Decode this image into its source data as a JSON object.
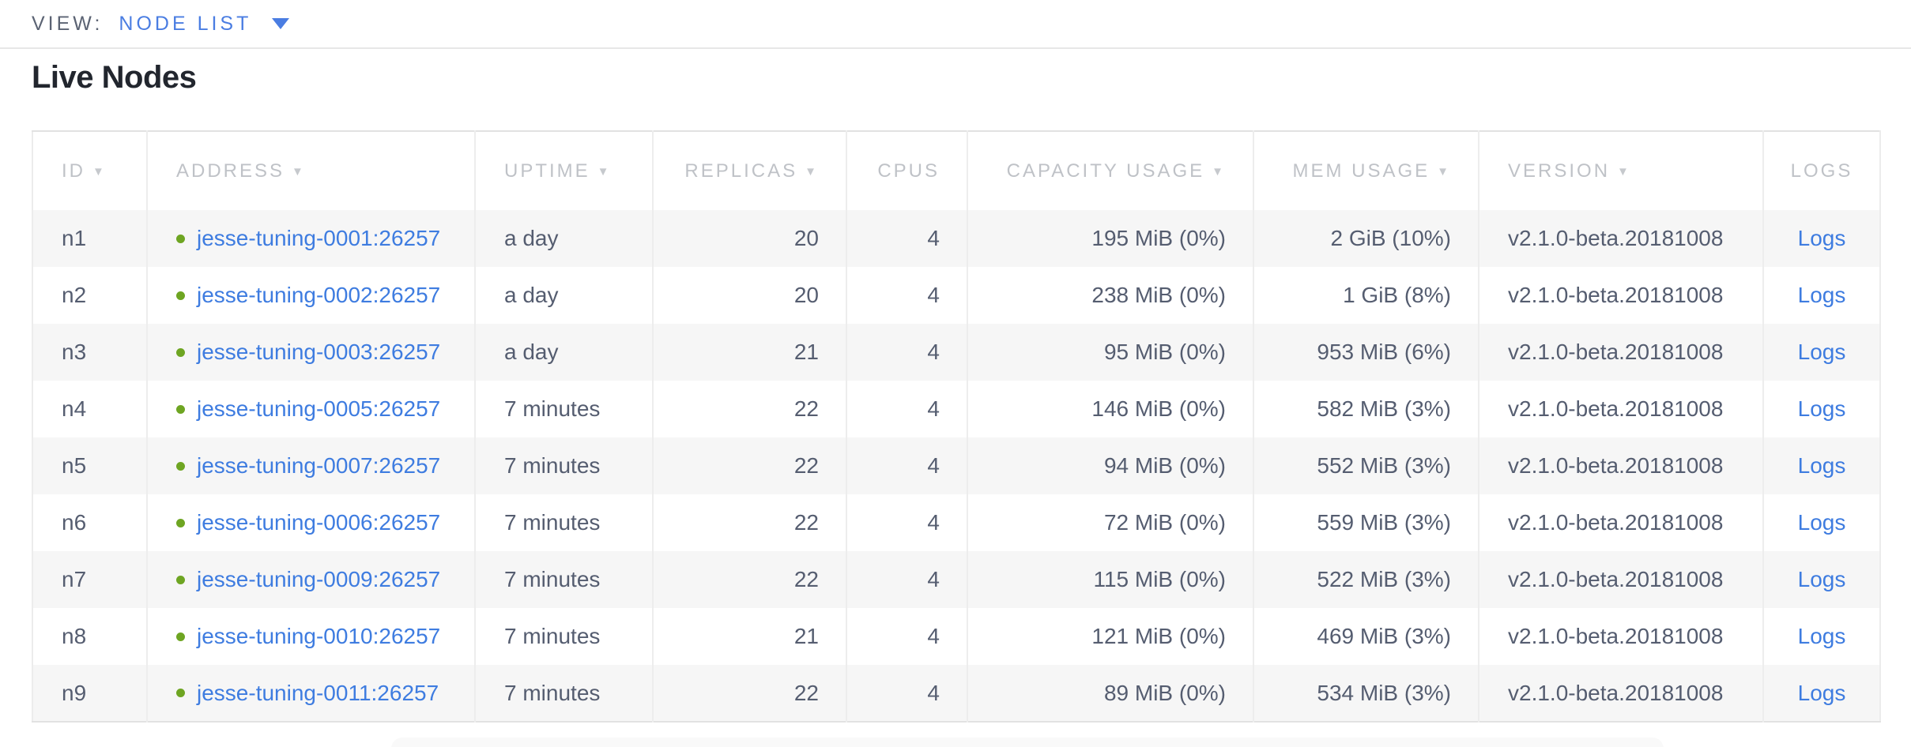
{
  "view_bar": {
    "label": "VIEW:",
    "selected_view": "NODE LIST"
  },
  "page": {
    "title": "Live Nodes"
  },
  "table": {
    "sort_glyph": "▼",
    "columns": [
      {
        "key": "id",
        "label": "ID",
        "sortable": true,
        "align": "left"
      },
      {
        "key": "address",
        "label": "ADDRESS",
        "sortable": true,
        "align": "left"
      },
      {
        "key": "uptime",
        "label": "UPTIME",
        "sortable": true,
        "align": "left"
      },
      {
        "key": "replicas",
        "label": "REPLICAS",
        "sortable": true,
        "align": "right"
      },
      {
        "key": "cpus",
        "label": "CPUS",
        "sortable": false,
        "align": "right"
      },
      {
        "key": "capacity_usage",
        "label": "CAPACITY USAGE",
        "sortable": true,
        "align": "right"
      },
      {
        "key": "mem_usage",
        "label": "MEM USAGE",
        "sortable": true,
        "align": "right"
      },
      {
        "key": "version",
        "label": "VERSION",
        "sortable": true,
        "align": "left"
      },
      {
        "key": "logs",
        "label": "LOGS",
        "sortable": false,
        "align": "center"
      }
    ],
    "rows": [
      {
        "id": "n1",
        "status": "live",
        "address": "jesse-tuning-0001:26257",
        "uptime": "a day",
        "replicas": "20",
        "cpus": "4",
        "capacity_usage": "195 MiB (0%)",
        "mem_usage": "2 GiB (10%)",
        "version": "v2.1.0-beta.20181008",
        "logs": "Logs"
      },
      {
        "id": "n2",
        "status": "live",
        "address": "jesse-tuning-0002:26257",
        "uptime": "a day",
        "replicas": "20",
        "cpus": "4",
        "capacity_usage": "238 MiB (0%)",
        "mem_usage": "1 GiB (8%)",
        "version": "v2.1.0-beta.20181008",
        "logs": "Logs"
      },
      {
        "id": "n3",
        "status": "live",
        "address": "jesse-tuning-0003:26257",
        "uptime": "a day",
        "replicas": "21",
        "cpus": "4",
        "capacity_usage": "95 MiB (0%)",
        "mem_usage": "953 MiB (6%)",
        "version": "v2.1.0-beta.20181008",
        "logs": "Logs"
      },
      {
        "id": "n4",
        "status": "live",
        "address": "jesse-tuning-0005:26257",
        "uptime": "7 minutes",
        "replicas": "22",
        "cpus": "4",
        "capacity_usage": "146 MiB (0%)",
        "mem_usage": "582 MiB (3%)",
        "version": "v2.1.0-beta.20181008",
        "logs": "Logs"
      },
      {
        "id": "n5",
        "status": "live",
        "address": "jesse-tuning-0007:26257",
        "uptime": "7 minutes",
        "replicas": "22",
        "cpus": "4",
        "capacity_usage": "94 MiB (0%)",
        "mem_usage": "552 MiB (3%)",
        "version": "v2.1.0-beta.20181008",
        "logs": "Logs"
      },
      {
        "id": "n6",
        "status": "live",
        "address": "jesse-tuning-0006:26257",
        "uptime": "7 minutes",
        "replicas": "22",
        "cpus": "4",
        "capacity_usage": "72 MiB (0%)",
        "mem_usage": "559 MiB (3%)",
        "version": "v2.1.0-beta.20181008",
        "logs": "Logs"
      },
      {
        "id": "n7",
        "status": "live",
        "address": "jesse-tuning-0009:26257",
        "uptime": "7 minutes",
        "replicas": "22",
        "cpus": "4",
        "capacity_usage": "115 MiB (0%)",
        "mem_usage": "522 MiB (3%)",
        "version": "v2.1.0-beta.20181008",
        "logs": "Logs"
      },
      {
        "id": "n8",
        "status": "live",
        "address": "jesse-tuning-0010:26257",
        "uptime": "7 minutes",
        "replicas": "21",
        "cpus": "4",
        "capacity_usage": "121 MiB (0%)",
        "mem_usage": "469 MiB (3%)",
        "version": "v2.1.0-beta.20181008",
        "logs": "Logs"
      },
      {
        "id": "n9",
        "status": "live",
        "address": "jesse-tuning-0011:26257",
        "uptime": "7 minutes",
        "replicas": "22",
        "cpus": "4",
        "capacity_usage": "89 MiB (0%)",
        "mem_usage": "534 MiB (3%)",
        "version": "v2.1.0-beta.20181008",
        "logs": "Logs"
      }
    ]
  },
  "colors": {
    "accent_blue": "#4a7de2",
    "link": "#3e7ce0",
    "live_dot": "#6ea522",
    "header_text": "#bfc2c7",
    "body_text": "#555d70"
  }
}
